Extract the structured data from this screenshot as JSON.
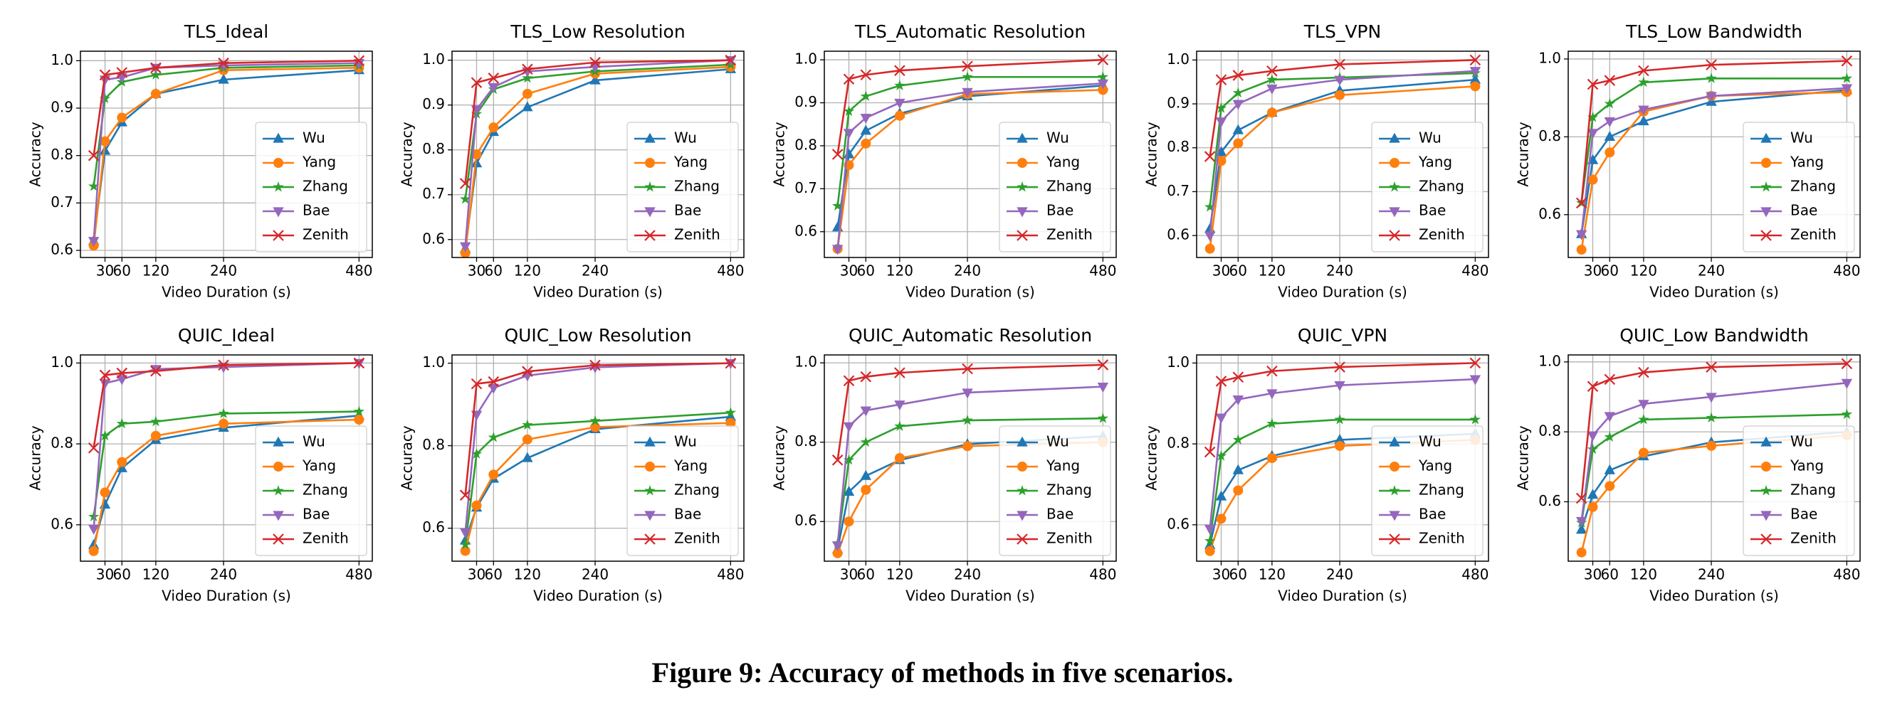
{
  "chart_data": [
    {
      "type": "line",
      "title": "TLS_Ideal",
      "xlabel": "Video Duration (s)",
      "ylabel": "Accuracy",
      "x": [
        10,
        30,
        60,
        120,
        240,
        480
      ],
      "xlim": [
        -13.5,
        503.5
      ],
      "xticks": [
        30,
        60,
        120,
        240,
        480
      ],
      "ylim": [
        0.585,
        1.02
      ],
      "yticks": [
        0.6,
        0.7,
        0.8,
        0.9,
        {
          "value": 1,
          "label": "1.0"
        }
      ],
      "grid": true,
      "legend": "lower right",
      "series": [
        {
          "name": "Wu",
          "color": "#1f77b4",
          "marker": "triangle-up",
          "values": [
            0.62,
            0.81,
            0.87,
            0.93,
            0.96,
            0.98
          ]
        },
        {
          "name": "Yang",
          "color": "#ff7f0e",
          "marker": "circle",
          "values": [
            0.61,
            0.83,
            0.88,
            0.93,
            0.98,
            0.985
          ]
        },
        {
          "name": "Zhang",
          "color": "#2ca02c",
          "marker": "star",
          "values": [
            0.735,
            0.92,
            0.955,
            0.97,
            0.985,
            0.99
          ]
        },
        {
          "name": "Bae",
          "color": "#9467bd",
          "marker": "triangle-down",
          "values": [
            0.62,
            0.96,
            0.965,
            0.985,
            0.99,
            0.995
          ]
        },
        {
          "name": "Zenith",
          "color": "#d62728",
          "marker": "x",
          "values": [
            0.8,
            0.97,
            0.975,
            0.985,
            0.995,
            1.0
          ]
        }
      ]
    },
    {
      "type": "line",
      "title": "TLS_Low Resolution",
      "xlabel": "Video Duration (s)",
      "ylabel": "Accuracy",
      "x": [
        10,
        30,
        60,
        120,
        240,
        480
      ],
      "xlim": [
        -13.5,
        503.5
      ],
      "xticks": [
        30,
        60,
        120,
        240,
        480
      ],
      "ylim": [
        0.56,
        1.02
      ],
      "yticks": [
        0.6,
        0.7,
        0.8,
        0.9,
        {
          "value": 1,
          "label": "1.0"
        }
      ],
      "grid": true,
      "legend": "lower right",
      "series": [
        {
          "name": "Wu",
          "color": "#1f77b4",
          "marker": "triangle-up",
          "values": [
            0.58,
            0.77,
            0.84,
            0.895,
            0.955,
            0.98
          ]
        },
        {
          "name": "Yang",
          "color": "#ff7f0e",
          "marker": "circle",
          "values": [
            0.57,
            0.79,
            0.85,
            0.925,
            0.97,
            0.985
          ]
        },
        {
          "name": "Zhang",
          "color": "#2ca02c",
          "marker": "star",
          "values": [
            0.69,
            0.88,
            0.935,
            0.96,
            0.975,
            0.99
          ]
        },
        {
          "name": "Bae",
          "color": "#9467bd",
          "marker": "triangle-down",
          "values": [
            0.585,
            0.89,
            0.94,
            0.975,
            0.985,
            1.0
          ]
        },
        {
          "name": "Zenith",
          "color": "#d62728",
          "marker": "x",
          "values": [
            0.725,
            0.95,
            0.96,
            0.98,
            0.995,
            1.0
          ]
        }
      ]
    },
    {
      "type": "line",
      "title": "TLS_Automatic Resolution",
      "xlabel": "Video Duration (s)",
      "ylabel": "Accuracy",
      "x": [
        10,
        30,
        60,
        120,
        240,
        480
      ],
      "xlim": [
        -13.5,
        503.5
      ],
      "xticks": [
        30,
        60,
        120,
        240,
        480
      ],
      "ylim": [
        0.54,
        1.02
      ],
      "yticks": [
        0.6,
        0.7,
        0.8,
        0.9,
        {
          "value": 1,
          "label": "1.0"
        }
      ],
      "grid": true,
      "legend": "lower right",
      "series": [
        {
          "name": "Wu",
          "color": "#1f77b4",
          "marker": "triangle-up",
          "values": [
            0.61,
            0.78,
            0.835,
            0.875,
            0.915,
            0.94
          ]
        },
        {
          "name": "Yang",
          "color": "#ff7f0e",
          "marker": "circle",
          "values": [
            0.56,
            0.755,
            0.805,
            0.87,
            0.92,
            0.93
          ]
        },
        {
          "name": "Zhang",
          "color": "#2ca02c",
          "marker": "star",
          "values": [
            0.66,
            0.88,
            0.915,
            0.94,
            0.96,
            0.96
          ]
        },
        {
          "name": "Bae",
          "color": "#9467bd",
          "marker": "triangle-down",
          "values": [
            0.56,
            0.83,
            0.865,
            0.9,
            0.925,
            0.945
          ]
        },
        {
          "name": "Zenith",
          "color": "#d62728",
          "marker": "x",
          "values": [
            0.78,
            0.955,
            0.965,
            0.975,
            0.985,
            1.0
          ]
        }
      ]
    },
    {
      "type": "line",
      "title": "TLS_VPN",
      "xlabel": "Video Duration (s)",
      "ylabel": "Accuracy",
      "x": [
        10,
        30,
        60,
        120,
        240,
        480
      ],
      "xlim": [
        -13.5,
        503.5
      ],
      "xticks": [
        30,
        60,
        120,
        240,
        480
      ],
      "ylim": [
        0.55,
        1.02
      ],
      "yticks": [
        0.6,
        0.7,
        0.8,
        0.9,
        {
          "value": 1,
          "label": "1.0"
        }
      ],
      "grid": true,
      "legend": "lower right",
      "series": [
        {
          "name": "Wu",
          "color": "#1f77b4",
          "marker": "triangle-up",
          "values": [
            0.615,
            0.79,
            0.84,
            0.88,
            0.93,
            0.955
          ]
        },
        {
          "name": "Yang",
          "color": "#ff7f0e",
          "marker": "circle",
          "values": [
            0.57,
            0.77,
            0.81,
            0.88,
            0.92,
            0.94
          ]
        },
        {
          "name": "Zhang",
          "color": "#2ca02c",
          "marker": "star",
          "values": [
            0.665,
            0.89,
            0.925,
            0.955,
            0.96,
            0.97
          ]
        },
        {
          "name": "Bae",
          "color": "#9467bd",
          "marker": "triangle-down",
          "values": [
            0.6,
            0.86,
            0.9,
            0.935,
            0.955,
            0.975
          ]
        },
        {
          "name": "Zenith",
          "color": "#d62728",
          "marker": "x",
          "values": [
            0.78,
            0.955,
            0.965,
            0.975,
            0.99,
            1.0
          ]
        }
      ]
    },
    {
      "type": "line",
      "title": "TLS_Low Bandwidth",
      "xlabel": "Video Duration (s)",
      "ylabel": "Accuracy",
      "x": [
        10,
        30,
        60,
        120,
        240,
        480
      ],
      "xlim": [
        -13.5,
        503.5
      ],
      "xticks": [
        30,
        60,
        120,
        240,
        480
      ],
      "ylim": [
        0.49,
        1.02
      ],
      "yticks": [
        0.6,
        0.8,
        {
          "value": 1,
          "label": "1.0"
        }
      ],
      "grid": true,
      "legend": "lower right",
      "series": [
        {
          "name": "Wu",
          "color": "#1f77b4",
          "marker": "triangle-up",
          "values": [
            0.55,
            0.74,
            0.8,
            0.84,
            0.89,
            0.92
          ]
        },
        {
          "name": "Yang",
          "color": "#ff7f0e",
          "marker": "circle",
          "values": [
            0.51,
            0.69,
            0.76,
            0.865,
            0.905,
            0.915
          ]
        },
        {
          "name": "Zhang",
          "color": "#2ca02c",
          "marker": "star",
          "values": [
            0.63,
            0.85,
            0.885,
            0.94,
            0.95,
            0.95
          ]
        },
        {
          "name": "Bae",
          "color": "#9467bd",
          "marker": "triangle-down",
          "values": [
            0.55,
            0.81,
            0.84,
            0.87,
            0.905,
            0.925
          ]
        },
        {
          "name": "Zenith",
          "color": "#d62728",
          "marker": "x",
          "values": [
            0.63,
            0.935,
            0.945,
            0.97,
            0.985,
            0.995
          ]
        }
      ]
    },
    {
      "type": "line",
      "title": "QUIC_Ideal",
      "xlabel": "Video Duration (s)",
      "ylabel": "Accuracy",
      "x": [
        10,
        30,
        60,
        120,
        240,
        480
      ],
      "xlim": [
        -13.5,
        503.5
      ],
      "xticks": [
        30,
        60,
        120,
        240,
        480
      ],
      "ylim": [
        0.51,
        1.02
      ],
      "yticks": [
        0.6,
        0.8,
        {
          "value": 1,
          "label": "1.0"
        }
      ],
      "grid": true,
      "legend": "lower right",
      "series": [
        {
          "name": "Wu",
          "color": "#1f77b4",
          "marker": "triangle-up",
          "values": [
            0.55,
            0.65,
            0.74,
            0.81,
            0.84,
            0.87
          ]
        },
        {
          "name": "Yang",
          "color": "#ff7f0e",
          "marker": "circle",
          "values": [
            0.535,
            0.68,
            0.755,
            0.82,
            0.85,
            0.86
          ]
        },
        {
          "name": "Zhang",
          "color": "#2ca02c",
          "marker": "star",
          "values": [
            0.62,
            0.82,
            0.85,
            0.855,
            0.875,
            0.88
          ]
        },
        {
          "name": "Bae",
          "color": "#9467bd",
          "marker": "triangle-down",
          "values": [
            0.59,
            0.95,
            0.96,
            0.985,
            0.99,
            1.0
          ]
        },
        {
          "name": "Zenith",
          "color": "#d62728",
          "marker": "x",
          "values": [
            0.79,
            0.97,
            0.975,
            0.98,
            0.995,
            1.0
          ]
        }
      ]
    },
    {
      "type": "line",
      "title": "QUIC_Low Resolution",
      "xlabel": "Video Duration (s)",
      "ylabel": "Accuracy",
      "x": [
        10,
        30,
        60,
        120,
        240,
        480
      ],
      "xlim": [
        -13.5,
        503.5
      ],
      "xticks": [
        30,
        60,
        120,
        240,
        480
      ],
      "ylim": [
        0.52,
        1.02
      ],
      "yticks": [
        0.6,
        0.8,
        {
          "value": 1,
          "label": "1.0"
        }
      ],
      "grid": true,
      "legend": "lower right",
      "series": [
        {
          "name": "Wu",
          "color": "#1f77b4",
          "marker": "triangle-up",
          "values": [
            0.57,
            0.65,
            0.72,
            0.77,
            0.84,
            0.87
          ]
        },
        {
          "name": "Yang",
          "color": "#ff7f0e",
          "marker": "circle",
          "values": [
            0.545,
            0.655,
            0.73,
            0.815,
            0.845,
            0.855
          ]
        },
        {
          "name": "Zhang",
          "color": "#2ca02c",
          "marker": "star",
          "values": [
            0.56,
            0.78,
            0.82,
            0.85,
            0.86,
            0.88
          ]
        },
        {
          "name": "Bae",
          "color": "#9467bd",
          "marker": "triangle-down",
          "values": [
            0.59,
            0.875,
            0.94,
            0.97,
            0.99,
            1.0
          ]
        },
        {
          "name": "Zenith",
          "color": "#d62728",
          "marker": "x",
          "values": [
            0.68,
            0.95,
            0.955,
            0.98,
            0.995,
            1.0
          ]
        }
      ]
    },
    {
      "type": "line",
      "title": "QUIC_Automatic Resolution",
      "xlabel": "Video Duration (s)",
      "ylabel": "Accuracy",
      "x": [
        10,
        30,
        60,
        120,
        240,
        480
      ],
      "xlim": [
        -13.5,
        503.5
      ],
      "xticks": [
        30,
        60,
        120,
        240,
        480
      ],
      "ylim": [
        0.5,
        1.02
      ],
      "yticks": [
        0.6,
        0.8,
        {
          "value": 1,
          "label": "1.0"
        }
      ],
      "grid": true,
      "legend": "lower right",
      "series": [
        {
          "name": "Wu",
          "color": "#1f77b4",
          "marker": "triangle-up",
          "values": [
            0.53,
            0.675,
            0.715,
            0.755,
            0.795,
            0.815
          ]
        },
        {
          "name": "Yang",
          "color": "#ff7f0e",
          "marker": "circle",
          "values": [
            0.52,
            0.6,
            0.68,
            0.76,
            0.79,
            0.8
          ]
        },
        {
          "name": "Zhang",
          "color": "#2ca02c",
          "marker": "star",
          "values": [
            0.545,
            0.755,
            0.8,
            0.84,
            0.855,
            0.86
          ]
        },
        {
          "name": "Bae",
          "color": "#9467bd",
          "marker": "triangle-down",
          "values": [
            0.54,
            0.84,
            0.88,
            0.895,
            0.925,
            0.94
          ]
        },
        {
          "name": "Zenith",
          "color": "#d62728",
          "marker": "x",
          "values": [
            0.755,
            0.955,
            0.965,
            0.975,
            0.985,
            0.995
          ]
        }
      ]
    },
    {
      "type": "line",
      "title": "QUIC_VPN",
      "xlabel": "Video Duration (s)",
      "ylabel": "Accuracy",
      "x": [
        10,
        30,
        60,
        120,
        240,
        480
      ],
      "xlim": [
        -13.5,
        503.5
      ],
      "xticks": [
        30,
        60,
        120,
        240,
        480
      ],
      "ylim": [
        0.51,
        1.02
      ],
      "yticks": [
        0.6,
        0.8,
        {
          "value": 1,
          "label": "1.0"
        }
      ],
      "grid": true,
      "legend": "lower right",
      "series": [
        {
          "name": "Wu",
          "color": "#1f77b4",
          "marker": "triangle-up",
          "values": [
            0.55,
            0.67,
            0.735,
            0.77,
            0.81,
            0.825
          ]
        },
        {
          "name": "Yang",
          "color": "#ff7f0e",
          "marker": "circle",
          "values": [
            0.535,
            0.615,
            0.685,
            0.765,
            0.795,
            0.81
          ]
        },
        {
          "name": "Zhang",
          "color": "#2ca02c",
          "marker": "star",
          "values": [
            0.56,
            0.77,
            0.81,
            0.85,
            0.86,
            0.86
          ]
        },
        {
          "name": "Bae",
          "color": "#9467bd",
          "marker": "triangle-down",
          "values": [
            0.59,
            0.865,
            0.91,
            0.925,
            0.945,
            0.96
          ]
        },
        {
          "name": "Zenith",
          "color": "#d62728",
          "marker": "x",
          "values": [
            0.78,
            0.955,
            0.965,
            0.98,
            0.99,
            1.0
          ]
        }
      ]
    },
    {
      "type": "line",
      "title": "QUIC_Low Bandwidth",
      "xlabel": "Video Duration (s)",
      "ylabel": "Accuracy",
      "x": [
        10,
        30,
        60,
        120,
        240,
        480
      ],
      "xlim": [
        -13.5,
        503.5
      ],
      "xticks": [
        30,
        60,
        120,
        240,
        480
      ],
      "ylim": [
        0.43,
        1.02
      ],
      "yticks": [
        0.6,
        0.8,
        {
          "value": 1,
          "label": "1.0"
        }
      ],
      "grid": true,
      "legend": "lower right",
      "series": [
        {
          "name": "Wu",
          "color": "#1f77b4",
          "marker": "triangle-up",
          "values": [
            0.52,
            0.62,
            0.69,
            0.73,
            0.77,
            0.8
          ]
        },
        {
          "name": "Yang",
          "color": "#ff7f0e",
          "marker": "circle",
          "values": [
            0.455,
            0.585,
            0.645,
            0.74,
            0.76,
            0.79
          ]
        },
        {
          "name": "Zhang",
          "color": "#2ca02c",
          "marker": "star",
          "values": [
            0.54,
            0.75,
            0.785,
            0.835,
            0.84,
            0.85
          ]
        },
        {
          "name": "Bae",
          "color": "#9467bd",
          "marker": "triangle-down",
          "values": [
            0.545,
            0.79,
            0.845,
            0.88,
            0.9,
            0.94
          ]
        },
        {
          "name": "Zenith",
          "color": "#d62728",
          "marker": "x",
          "values": [
            0.61,
            0.93,
            0.95,
            0.97,
            0.985,
            0.995
          ]
        }
      ]
    }
  ],
  "caption": "Figure 9: Accuracy of methods in five scenarios."
}
